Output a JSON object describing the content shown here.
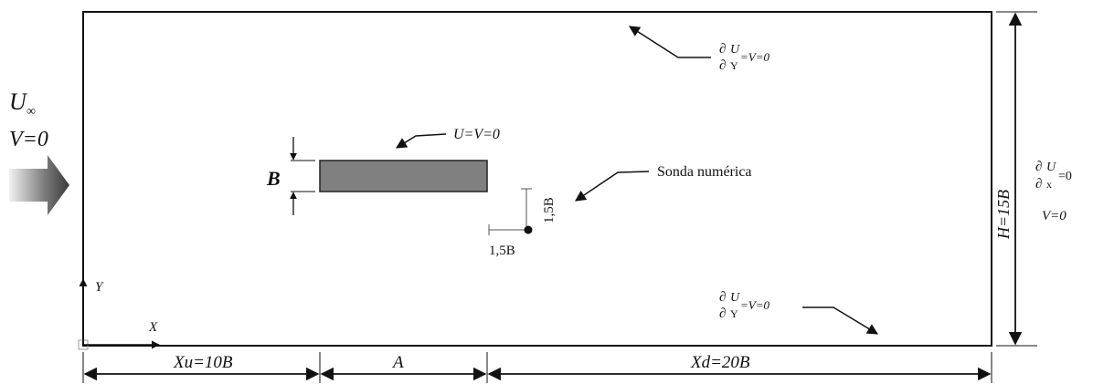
{
  "inlet": {
    "u_label": "U",
    "u_sub": "∞",
    "v_label": "V=0"
  },
  "top_bc": {
    "partial": "∂",
    "num": "U",
    "den": "Y",
    "rest": "=V=0"
  },
  "bottom_bc": {
    "partial": "∂",
    "num": "U",
    "den": "Y",
    "rest": "=V=0"
  },
  "outlet_bc": {
    "partial": "∂",
    "num": "U",
    "den": "x",
    "rest": "=0",
    "v": "V=0"
  },
  "obstacle_bc": "U=V=0",
  "probe": {
    "label": "Sonda numérica",
    "dx": "1,5B",
    "dy": "1,5B"
  },
  "dims": {
    "b": "B",
    "h": "H=15B",
    "xu": "Xu=10B",
    "a": "A",
    "xd": "Xd=20B"
  },
  "axes": {
    "x": "X",
    "y": "Y"
  },
  "colors": {
    "obstacle_fill": "#808080",
    "stroke": "#111111"
  }
}
